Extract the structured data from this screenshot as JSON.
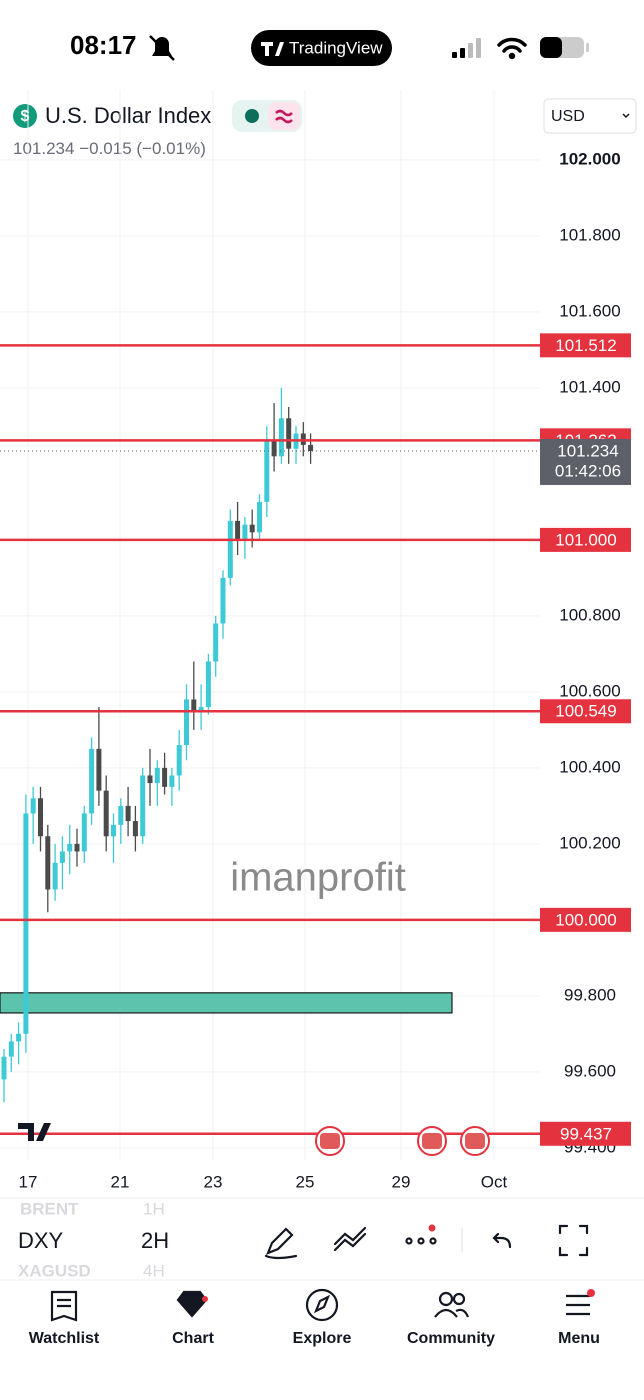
{
  "status_bar": {
    "time": "08:17",
    "app": "TradingView"
  },
  "header": {
    "symbol_icon": "$",
    "symbol": "U.S. Dollar Index",
    "price": "101.234",
    "change": "−0.015",
    "change_pct": "(−0.01%)",
    "currency": "USD"
  },
  "chart_data": {
    "type": "candlestick",
    "ylim": [
      99.368,
      102.184
    ],
    "yticks": [
      {
        "value": 102,
        "label": "102.000"
      },
      {
        "value": 101.8,
        "label": "101.800"
      },
      {
        "value": 101.6,
        "label": "101.600"
      },
      {
        "value": 101.4,
        "label": "101.400"
      },
      {
        "value": 100.8,
        "label": "100.800"
      },
      {
        "value": 100.6,
        "label": "100.600"
      },
      {
        "value": 100.4,
        "label": "100.400"
      },
      {
        "value": 100.2,
        "label": "100.200"
      },
      {
        "value": 99.8,
        "label": "99.800"
      },
      {
        "value": 99.6,
        "label": "99.600"
      },
      {
        "value": 99.4,
        "label": "99.400"
      }
    ],
    "categories": [
      "17",
      "21",
      "23",
      "25",
      "29",
      "Oct"
    ],
    "open": [
      99.58,
      99.64,
      99.68,
      99.7,
      100.28,
      100.32,
      100.22,
      100.08,
      100.15,
      100.18,
      100.2,
      100.18,
      100.28,
      100.45,
      100.34,
      100.22,
      100.25,
      100.3,
      100.26,
      100.22,
      100.38,
      100.36,
      100.4,
      100.35,
      100.38,
      100.46,
      100.58,
      100.55,
      100.56,
      100.68,
      100.78,
      100.9,
      101.05,
      101.0,
      101.04,
      101.02,
      101.1,
      101.26,
      101.22,
      101.32,
      101.24,
      101.28,
      101.25
    ],
    "high": [
      99.66,
      99.7,
      99.73,
      100.33,
      100.35,
      100.35,
      100.25,
      100.2,
      100.22,
      100.25,
      100.24,
      100.3,
      100.48,
      100.56,
      100.38,
      100.28,
      100.32,
      100.35,
      100.3,
      100.4,
      100.45,
      100.42,
      100.44,
      100.4,
      100.5,
      100.62,
      100.68,
      100.62,
      100.7,
      100.8,
      100.92,
      101.08,
      101.1,
      101.06,
      101.08,
      101.12,
      101.3,
      101.36,
      101.4,
      101.35,
      101.3,
      101.31,
      101.28
    ],
    "low": [
      99.52,
      99.6,
      99.62,
      99.65,
      100.2,
      100.18,
      100.02,
      100.05,
      100.08,
      100.12,
      100.14,
      100.15,
      100.25,
      100.3,
      100.18,
      100.15,
      100.2,
      100.22,
      100.18,
      100.2,
      100.3,
      100.3,
      100.33,
      100.3,
      100.34,
      100.42,
      100.5,
      100.5,
      100.54,
      100.64,
      100.74,
      100.88,
      100.96,
      100.95,
      100.98,
      101.0,
      101.06,
      101.18,
      101.2,
      101.2,
      101.2,
      101.22,
      101.2
    ],
    "close": [
      99.64,
      99.68,
      99.7,
      100.28,
      100.32,
      100.22,
      100.08,
      100.15,
      100.18,
      100.2,
      100.18,
      100.28,
      100.45,
      100.34,
      100.22,
      100.25,
      100.3,
      100.26,
      100.22,
      100.38,
      100.36,
      100.4,
      100.35,
      100.38,
      100.46,
      100.58,
      100.55,
      100.56,
      100.68,
      100.78,
      100.9,
      101.05,
      101.0,
      101.04,
      101.02,
      101.1,
      101.26,
      101.22,
      101.32,
      101.24,
      101.28,
      101.25,
      101.234
    ],
    "up_color": "#3ec9d6",
    "down_color": "#4a4a4a",
    "level_color": "#e5323f",
    "levels": [
      {
        "value": 101.512,
        "label": "101.512"
      },
      {
        "value": 101.262,
        "label": "101.262"
      },
      {
        "value": 101.0,
        "label": "101.000"
      },
      {
        "value": 100.549,
        "label": "100.549"
      },
      {
        "value": 100.0,
        "label": "100.000"
      },
      {
        "value": 99.437,
        "label": "99.437"
      }
    ],
    "last_price": {
      "value": 101.234,
      "label": "101.234"
    },
    "countdown": "01:42:06",
    "zone": {
      "low": 99.755,
      "high": 99.808,
      "color": "#5cc3ac"
    },
    "watermark": "imanprofit",
    "grid": true
  },
  "toolbar": {
    "symbol_prev": "BRENT",
    "symbol": "DXY",
    "symbol_next": "XAGUSD",
    "interval_prev": "1H",
    "interval": "2H",
    "interval_next": "4H"
  },
  "nav": [
    "Watchlist",
    "Chart",
    "Explore",
    "Community",
    "Menu"
  ]
}
